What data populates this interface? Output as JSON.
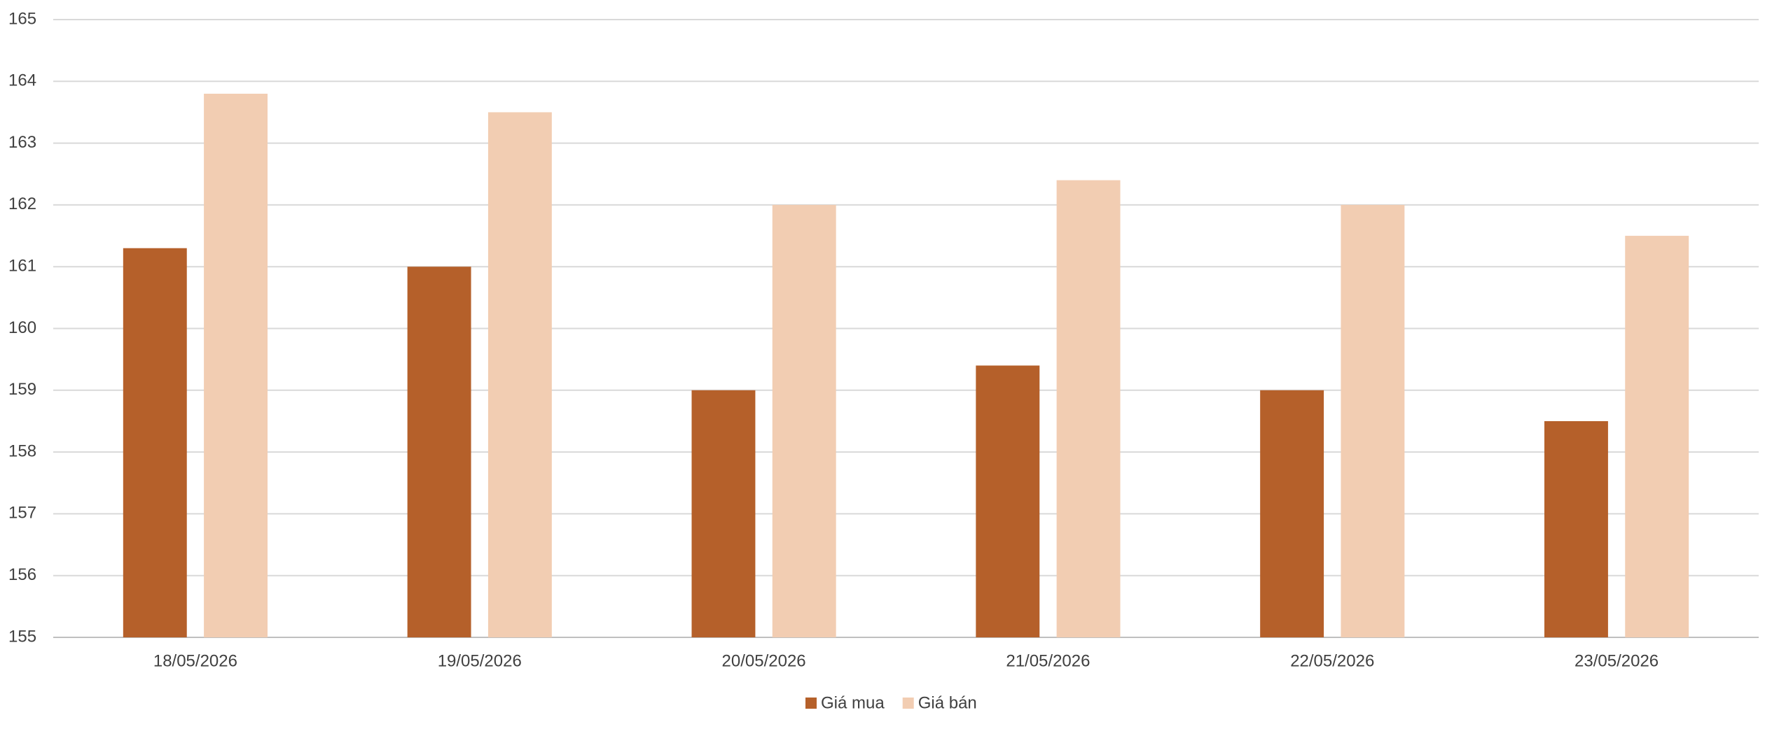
{
  "chart_data": {
    "type": "bar",
    "categories": [
      "18/05/2026",
      "19/05/2026",
      "20/05/2026",
      "21/05/2026",
      "22/05/2026",
      "23/05/2026"
    ],
    "series": [
      {
        "name": "Giá mua",
        "color": "#b5602a",
        "values": [
          161.3,
          161,
          159,
          159.4,
          159,
          158.5
        ]
      },
      {
        "name": "Giá bán",
        "color": "#f2cdb2",
        "values": [
          163.8,
          163.5,
          162,
          162.4,
          162,
          161.5
        ]
      }
    ],
    "ylim": [
      155,
      165
    ],
    "yticks": [
      155,
      156,
      157,
      158,
      159,
      160,
      161,
      162,
      163,
      164,
      165
    ],
    "grid": true,
    "legend": "bottom"
  }
}
